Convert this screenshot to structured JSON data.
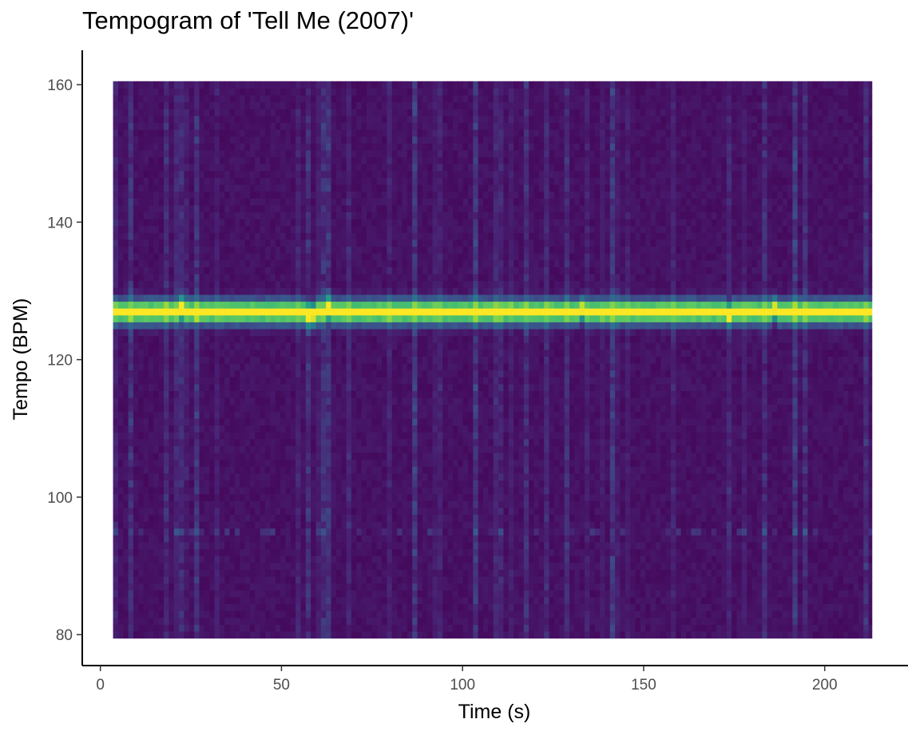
{
  "chart_data": {
    "type": "heatmap",
    "title": "Tempogram of 'Tell Me (2007)'",
    "xlabel": "Time (s)",
    "ylabel": "Tempo (BPM)",
    "xlim": [
      -5,
      223
    ],
    "ylim": [
      75.5,
      165
    ],
    "x_ticks": [
      0,
      50,
      100,
      150,
      200
    ],
    "y_ticks": [
      80,
      100,
      120,
      140,
      160
    ],
    "grid": false,
    "legend": "none",
    "colormap": "viridis",
    "heatmap": {
      "time_start": 3.5,
      "time_end": 213,
      "time_step": 1.4,
      "tempo_min": 80,
      "tempo_max": 160,
      "tempo_step": 1,
      "dominant_tempo": 127,
      "dominant_intensity": 1.0,
      "background_intensity": 0.03
    }
  },
  "colors": {
    "viridis_low": "#440154",
    "viridis_mid": "#21918c",
    "viridis_high": "#fde725",
    "axis_line": "#000000",
    "tick_text": "#4d4d4d"
  }
}
